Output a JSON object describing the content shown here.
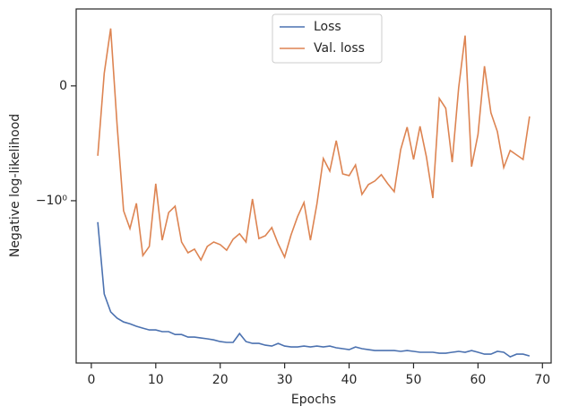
{
  "chart_data": {
    "type": "line",
    "x_label": "Epochs",
    "y_label": "Negative log-likelihood",
    "y_scale": "symlog",
    "linthresh": 1,
    "x": [
      1,
      2,
      3,
      4,
      5,
      6,
      7,
      8,
      9,
      10,
      11,
      12,
      13,
      14,
      15,
      16,
      17,
      18,
      19,
      20,
      21,
      22,
      23,
      24,
      25,
      26,
      27,
      28,
      29,
      30,
      31,
      32,
      33,
      34,
      35,
      36,
      37,
      38,
      39,
      40,
      41,
      42,
      43,
      44,
      45,
      46,
      47,
      48,
      49,
      50,
      51,
      52,
      53,
      54,
      55,
      56,
      57,
      58,
      59,
      60,
      61,
      62,
      63,
      64,
      65,
      66,
      67,
      68
    ],
    "series": [
      {
        "name": "Loss",
        "color": "#4c72b0",
        "values": [
          -1.61,
          -8.0,
          -11.9,
          -13.7,
          -14.9,
          -15.5,
          -16.4,
          -17.1,
          -17.8,
          -17.8,
          -18.5,
          -18.5,
          -19.7,
          -19.7,
          -20.9,
          -20.9,
          -21.3,
          -21.7,
          -22.2,
          -23.1,
          -23.5,
          -23.5,
          -19.3,
          -23.1,
          -24.0,
          -24.0,
          -25.0,
          -25.5,
          -24.0,
          -25.5,
          -26.0,
          -26.0,
          -25.5,
          -26.0,
          -25.5,
          -26.0,
          -25.5,
          -26.5,
          -27.0,
          -27.6,
          -26.0,
          -27.0,
          -27.6,
          -28.2,
          -28.2,
          -28.2,
          -28.2,
          -28.7,
          -28.2,
          -28.7,
          -29.3,
          -29.3,
          -29.3,
          -29.9,
          -29.9,
          -29.3,
          -28.7,
          -29.3,
          -28.2,
          -29.3,
          -30.5,
          -30.5,
          -28.7,
          -29.3,
          -32.4,
          -30.5,
          -30.5,
          -31.8
        ]
      },
      {
        "name": "Val. loss",
        "color": "#dd8452",
        "values": [
          -0.609,
          0.109,
          0.5,
          -0.344,
          -1.25,
          -1.86,
          -1.06,
          -3.39,
          -2.77,
          -0.852,
          -2.41,
          -1.3,
          -1.13,
          -2.51,
          -3.19,
          -2.94,
          -3.74,
          -2.77,
          -2.51,
          -2.66,
          -3.01,
          -2.36,
          -2.09,
          -2.51,
          -0.985,
          -2.32,
          -2.18,
          -1.82,
          -2.61,
          -3.52,
          -2.14,
          -1.43,
          -1.04,
          -2.41,
          -1.08,
          -0.633,
          -0.742,
          -0.477,
          -0.766,
          -0.781,
          -0.688,
          -0.945,
          -0.859,
          -0.828,
          -0.773,
          -0.852,
          -0.922,
          -0.555,
          -0.359,
          -0.641,
          -0.352,
          -0.617,
          -0.977,
          -0.109,
          -0.195,
          -0.664,
          -0.016,
          0.438,
          -0.703,
          -0.422,
          0.172,
          -0.234,
          -0.398,
          -0.711,
          -0.563,
          -0.602,
          -0.641,
          -0.266
        ]
      }
    ],
    "xlim": [
      -2.35,
      71.35
    ],
    "xticks": [
      0,
      10,
      20,
      30,
      40,
      50,
      60,
      70
    ],
    "ylim": [
      -37.2,
      0.67
    ],
    "yticks": [
      0,
      {
        "value": -1,
        "label": "−10⁰"
      }
    ],
    "legend": "upper center"
  }
}
